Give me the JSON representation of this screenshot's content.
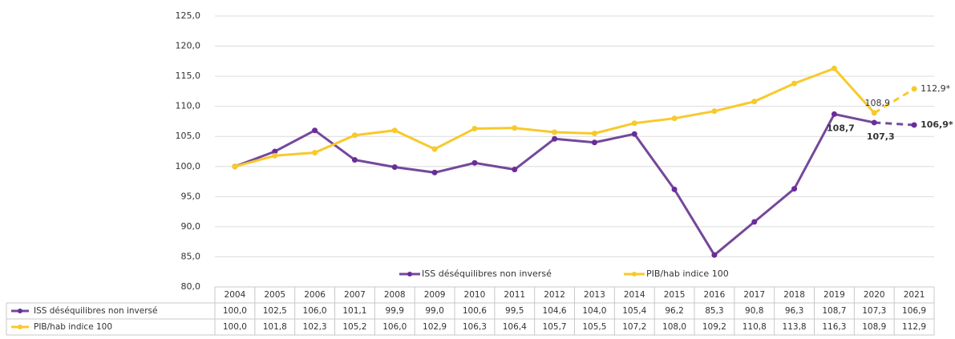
{
  "chart_data": {
    "type": "line",
    "categories": [
      "2004",
      "2005",
      "2006",
      "2007",
      "2008",
      "2009",
      "2010",
      "2011",
      "2012",
      "2013",
      "2014",
      "2015",
      "2016",
      "2017",
      "2018",
      "2019",
      "2020",
      "2021"
    ],
    "series": [
      {
        "name": "ISS déséquilibres non inversé",
        "color": "#74489a",
        "marker_color": "#6a2c9a",
        "values": [
          100.0,
          102.5,
          106.0,
          101.1,
          99.9,
          99.0,
          100.6,
          99.5,
          104.6,
          104.0,
          105.4,
          96.2,
          85.3,
          90.8,
          96.3,
          108.7,
          107.3,
          106.9
        ],
        "value_labels": [
          "100,0",
          "102,5",
          "106,0",
          "101,1",
          "99,9",
          "99,0",
          "100,6",
          "99,5",
          "104,6",
          "104,0",
          "105,4",
          "96,2",
          "85,3",
          "90,8",
          "96,3",
          "108,7",
          "107,3",
          "106,9"
        ],
        "point_labels": [
          null,
          null,
          null,
          null,
          null,
          null,
          null,
          null,
          null,
          null,
          null,
          null,
          null,
          null,
          null,
          "108,7",
          "107,3",
          "106,9*"
        ]
      },
      {
        "name": "PIB/hab indice 100",
        "color": "#f8c92c",
        "marker_color": "#f8c92c",
        "values": [
          100.0,
          101.8,
          102.3,
          105.2,
          106.0,
          102.9,
          106.3,
          106.4,
          105.7,
          105.5,
          107.2,
          108.0,
          109.2,
          110.8,
          113.8,
          116.3,
          108.9,
          112.9
        ],
        "value_labels": [
          "100,0",
          "101,8",
          "102,3",
          "105,2",
          "106,0",
          "102,9",
          "106,3",
          "106,4",
          "105,7",
          "105,5",
          "107,2",
          "108,0",
          "109,2",
          "110,8",
          "113,8",
          "116,3",
          "108,9",
          "112,9"
        ],
        "point_labels": [
          null,
          null,
          null,
          null,
          null,
          null,
          null,
          null,
          null,
          null,
          null,
          null,
          null,
          null,
          null,
          null,
          "108,9",
          "112,9*"
        ]
      }
    ],
    "ylim": [
      80,
      125
    ],
    "yticks": [
      {
        "value": 80,
        "label": "80,0"
      },
      {
        "value": 85,
        "label": "85,0"
      },
      {
        "value": 90,
        "label": "90,0"
      },
      {
        "value": 95,
        "label": "95,0"
      },
      {
        "value": 100,
        "label": "100,0"
      },
      {
        "value": 105,
        "label": "105,0"
      },
      {
        "value": 110,
        "label": "110,0"
      },
      {
        "value": 115,
        "label": "115,0"
      },
      {
        "value": 120,
        "label": "120,0"
      },
      {
        "value": 125,
        "label": "125,0"
      }
    ],
    "grid": true,
    "legend": "bottom",
    "data_table": true
  }
}
